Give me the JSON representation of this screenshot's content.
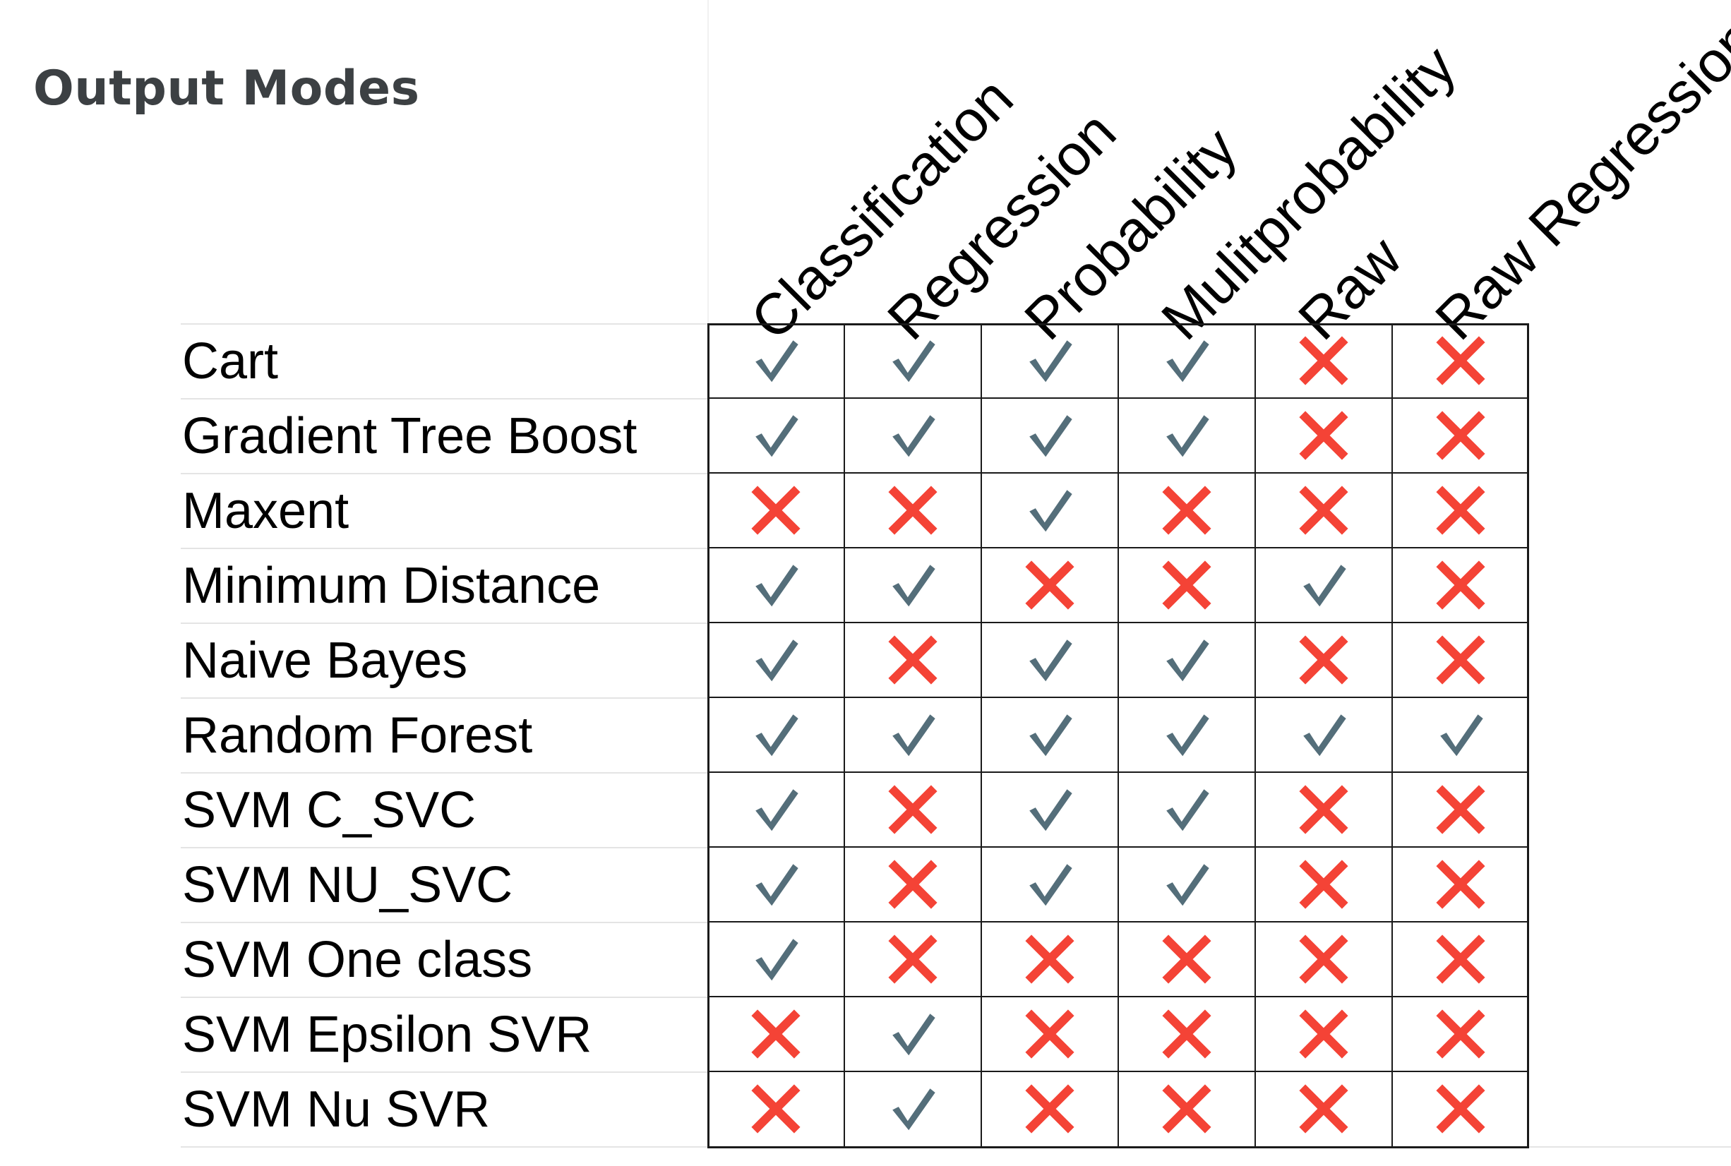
{
  "title": "Output Modes",
  "columns": [
    "Classification",
    "Regression",
    "Probability",
    "Mulitprobability",
    "Raw",
    "Raw Regression"
  ],
  "rows": [
    {
      "name": "Cart",
      "values": [
        true,
        true,
        true,
        true,
        false,
        false
      ]
    },
    {
      "name": "Gradient Tree Boost",
      "values": [
        true,
        true,
        true,
        true,
        false,
        false
      ]
    },
    {
      "name": "Maxent",
      "values": [
        false,
        false,
        true,
        false,
        false,
        false
      ]
    },
    {
      "name": "Minimum Distance",
      "values": [
        true,
        true,
        false,
        false,
        true,
        false
      ]
    },
    {
      "name": "Naive Bayes",
      "values": [
        true,
        false,
        true,
        true,
        false,
        false
      ]
    },
    {
      "name": "Random Forest",
      "values": [
        true,
        true,
        true,
        true,
        true,
        true
      ]
    },
    {
      "name": "SVM C_SVC",
      "values": [
        true,
        false,
        true,
        true,
        false,
        false
      ]
    },
    {
      "name": "SVM NU_SVC",
      "values": [
        true,
        false,
        true,
        true,
        false,
        false
      ]
    },
    {
      "name": "SVM One class",
      "values": [
        true,
        false,
        false,
        false,
        false,
        false
      ]
    },
    {
      "name": "SVM Epsilon SVR",
      "values": [
        false,
        true,
        false,
        false,
        false,
        false
      ]
    },
    {
      "name": "SVM Nu SVR",
      "values": [
        false,
        true,
        false,
        false,
        false,
        false
      ]
    }
  ],
  "icons": {
    "supported": "check-icon",
    "unsupported": "cross-icon"
  },
  "colors": {
    "check": "#546e7a",
    "cross": "#f44336",
    "title": "#3c4043"
  }
}
